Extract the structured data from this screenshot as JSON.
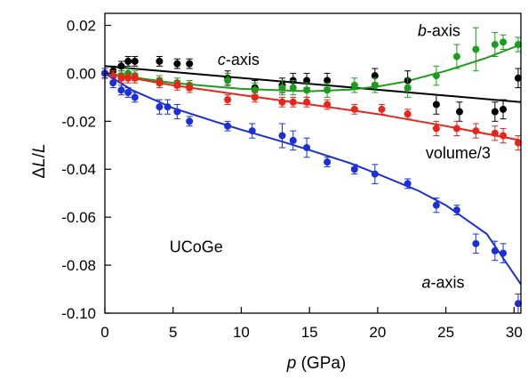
{
  "chart_data": {
    "type": "scatter",
    "xlabel": {
      "var": "p",
      "unit": " (GPa)"
    },
    "ylabel": {
      "prefix": "Δ",
      "var1": "L",
      "sep": "/",
      "var2": "L"
    },
    "xlim": [
      0,
      30.5
    ],
    "ylim": [
      -0.1,
      0.025
    ],
    "xticks": [
      0,
      5,
      10,
      15,
      20,
      25,
      30
    ],
    "yticks": [
      0.02,
      0.0,
      -0.02,
      -0.04,
      -0.06,
      -0.08,
      -0.1
    ],
    "ytick_labels": [
      "0.02",
      "0.00",
      "-0.02",
      "-0.04",
      "-0.06",
      "-0.08",
      "-0.10"
    ],
    "series": [
      {
        "name": "c-axis",
        "color": "#000000",
        "x": [
          0,
          0.6,
          1.2,
          1.7,
          2.2,
          4.0,
          5.3,
          6.2,
          9.0,
          11.0,
          13.0,
          13.8,
          14.8,
          16.3,
          19.8,
          22.2,
          24.3,
          26.0,
          28.6,
          29.2,
          30.3
        ],
        "y": [
          0.0,
          0.001,
          0.003,
          0.005,
          0.005,
          0.005,
          0.004,
          0.004,
          -0.002,
          -0.006,
          -0.005,
          -0.003,
          -0.003,
          -0.003,
          -0.001,
          -0.003,
          -0.013,
          -0.016,
          -0.016,
          -0.015,
          -0.002
        ],
        "err": [
          0.002,
          0.002,
          0.002,
          0.002,
          0.002,
          0.002,
          0.002,
          0.002,
          0.003,
          0.003,
          0.003,
          0.003,
          0.003,
          0.003,
          0.003,
          0.004,
          0.004,
          0.004,
          0.004,
          0.004,
          0.004
        ],
        "fit": {
          "x": [
            0,
            30.5
          ],
          "y": [
            0.003,
            -0.012
          ]
        }
      },
      {
        "name": "b-axis",
        "color": "#1a9e1a",
        "x": [
          0,
          0.6,
          1.2,
          1.7,
          2.2,
          4.0,
          5.3,
          6.2,
          9.0,
          11.0,
          13.0,
          13.8,
          14.8,
          16.3,
          18.3,
          19.8,
          22.2,
          24.3,
          25.8,
          27.2,
          28.6,
          29.2,
          30.3
        ],
        "y": [
          0.0,
          -0.001,
          -0.001,
          0.0,
          -0.001,
          -0.003,
          -0.004,
          -0.005,
          -0.003,
          -0.007,
          -0.006,
          -0.006,
          -0.007,
          -0.007,
          -0.005,
          -0.005,
          -0.006,
          -0.001,
          0.007,
          0.01,
          0.012,
          0.013,
          0.012
        ],
        "err": [
          0.002,
          0.002,
          0.002,
          0.002,
          0.002,
          0.002,
          0.002,
          0.002,
          0.003,
          0.003,
          0.003,
          0.003,
          0.003,
          0.003,
          0.003,
          0.003,
          0.004,
          0.004,
          0.005,
          0.009,
          0.005,
          0.003,
          0.003
        ],
        "fit": {
          "x": [
            0,
            5,
            10,
            15,
            18,
            20,
            22,
            25,
            28,
            30.5
          ],
          "y": [
            0.0,
            -0.004,
            -0.0065,
            -0.0075,
            -0.0068,
            -0.0055,
            -0.0035,
            0.001,
            0.0065,
            0.012
          ]
        }
      },
      {
        "name": "volume/3",
        "color": "#e8251b",
        "x": [
          0,
          0.6,
          1.2,
          1.7,
          2.2,
          4.0,
          5.3,
          6.2,
          9.0,
          11.0,
          13.0,
          13.8,
          14.8,
          16.3,
          18.3,
          20.3,
          22.2,
          24.3,
          25.8,
          27.2,
          28.6,
          29.2,
          30.3
        ],
        "y": [
          0.0,
          -0.001,
          -0.002,
          -0.002,
          -0.002,
          -0.004,
          -0.005,
          -0.006,
          -0.011,
          -0.01,
          -0.012,
          -0.012,
          -0.012,
          -0.013,
          -0.015,
          -0.015,
          -0.017,
          -0.023,
          -0.023,
          -0.024,
          -0.025,
          -0.026,
          -0.029
        ],
        "err": [
          0.002,
          0.002,
          0.002,
          0.002,
          0.002,
          0.002,
          0.002,
          0.002,
          0.002,
          0.002,
          0.002,
          0.002,
          0.002,
          0.002,
          0.002,
          0.002,
          0.002,
          0.003,
          0.003,
          0.003,
          0.003,
          0.003,
          0.003
        ],
        "fit": {
          "x": [
            0,
            5,
            10,
            15,
            20,
            25,
            30.5
          ],
          "y": [
            0.0,
            -0.005,
            -0.009,
            -0.013,
            -0.017,
            -0.022,
            -0.028
          ]
        }
      },
      {
        "name": "a-axis",
        "color": "#1a2fd8",
        "x": [
          0,
          0.6,
          1.2,
          1.7,
          2.2,
          4.0,
          4.6,
          5.3,
          6.2,
          9.0,
          10.8,
          13.0,
          13.8,
          14.8,
          16.3,
          18.3,
          19.8,
          22.2,
          24.3,
          25.8,
          27.2,
          28.6,
          29.2,
          30.3
        ],
        "y": [
          0.0,
          -0.004,
          -0.007,
          -0.008,
          -0.01,
          -0.014,
          -0.014,
          -0.016,
          -0.02,
          -0.022,
          -0.024,
          -0.026,
          -0.028,
          -0.031,
          -0.037,
          -0.04,
          -0.042,
          -0.046,
          -0.055,
          -0.057,
          -0.071,
          -0.074,
          -0.075,
          -0.096
        ],
        "err": [
          0.002,
          0.002,
          0.002,
          0.002,
          0.002,
          0.003,
          0.003,
          0.003,
          0.002,
          0.002,
          0.003,
          0.005,
          0.004,
          0.004,
          0.002,
          0.002,
          0.004,
          0.002,
          0.003,
          0.002,
          0.004,
          0.004,
          0.004,
          0.004
        ],
        "fit": {
          "x": [
            0,
            2,
            5,
            8,
            10,
            13,
            15,
            18,
            20,
            23,
            25,
            28,
            30.5
          ],
          "y": [
            0.0,
            -0.007,
            -0.0145,
            -0.02,
            -0.0235,
            -0.0285,
            -0.032,
            -0.0375,
            -0.042,
            -0.049,
            -0.055,
            -0.067,
            -0.088
          ]
        }
      }
    ],
    "annotations": [
      {
        "name": "c-axis",
        "italic": "c",
        "rest": "-axis",
        "x": 9.8,
        "y": 0.0035
      },
      {
        "name": "b-axis",
        "italic": "b",
        "rest": "-axis",
        "x": 24.5,
        "y": 0.0155
      },
      {
        "name": "volume/3",
        "italic": "",
        "rest": "volume/3",
        "x": 25.9,
        "y": -0.0355
      },
      {
        "name": "UCoGe",
        "italic": "",
        "rest": "UCoGe",
        "x": 6.7,
        "y": -0.0745
      },
      {
        "name": "a-axis",
        "italic": "a",
        "rest": "-axis",
        "x": 24.8,
        "y": -0.0895
      }
    ]
  }
}
